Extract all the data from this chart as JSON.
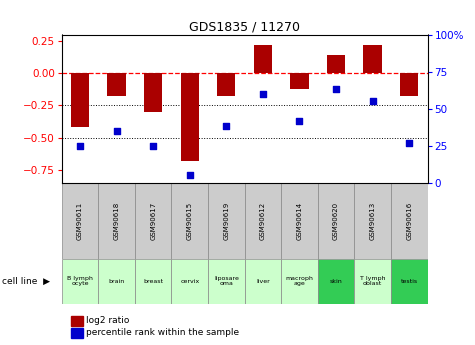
{
  "title": "GDS1835 / 11270",
  "samples": [
    "GSM90611",
    "GSM90618",
    "GSM90617",
    "GSM90615",
    "GSM90619",
    "GSM90612",
    "GSM90614",
    "GSM90620",
    "GSM90613",
    "GSM90616"
  ],
  "cell_lines": [
    "B lymph\nocyte",
    "brain",
    "breast",
    "cervix",
    "liposare\noma",
    "liver",
    "macroph\nage",
    "skin",
    "T lymph\noblast",
    "testis"
  ],
  "cell_line_colors": [
    "#ccffcc",
    "#ccffcc",
    "#ccffcc",
    "#ccffcc",
    "#ccffcc",
    "#ccffcc",
    "#ccffcc",
    "#33cc55",
    "#ccffcc",
    "#33cc55"
  ],
  "log2_ratio": [
    -0.42,
    -0.18,
    -0.3,
    -0.68,
    -0.18,
    0.22,
    -0.12,
    0.14,
    0.22,
    -0.18
  ],
  "percentile_rank": [
    25,
    35,
    25,
    5,
    38,
    60,
    42,
    63,
    55,
    27
  ],
  "bar_color": "#aa0000",
  "dot_color": "#0000cc",
  "ylim_left": [
    -0.85,
    0.3
  ],
  "ylim_right": [
    0,
    100
  ],
  "yticks_left": [
    -0.75,
    -0.5,
    -0.25,
    0,
    0.25
  ],
  "yticks_right": [
    0,
    25,
    50,
    75,
    100
  ],
  "ytick_right_labels": [
    "0",
    "25",
    "50",
    "75",
    "100%"
  ],
  "dotted_lines": [
    -0.25,
    -0.5
  ],
  "gsm_bg_color": "#cccccc",
  "legend_items": [
    "log2 ratio",
    "percentile rank within the sample"
  ]
}
